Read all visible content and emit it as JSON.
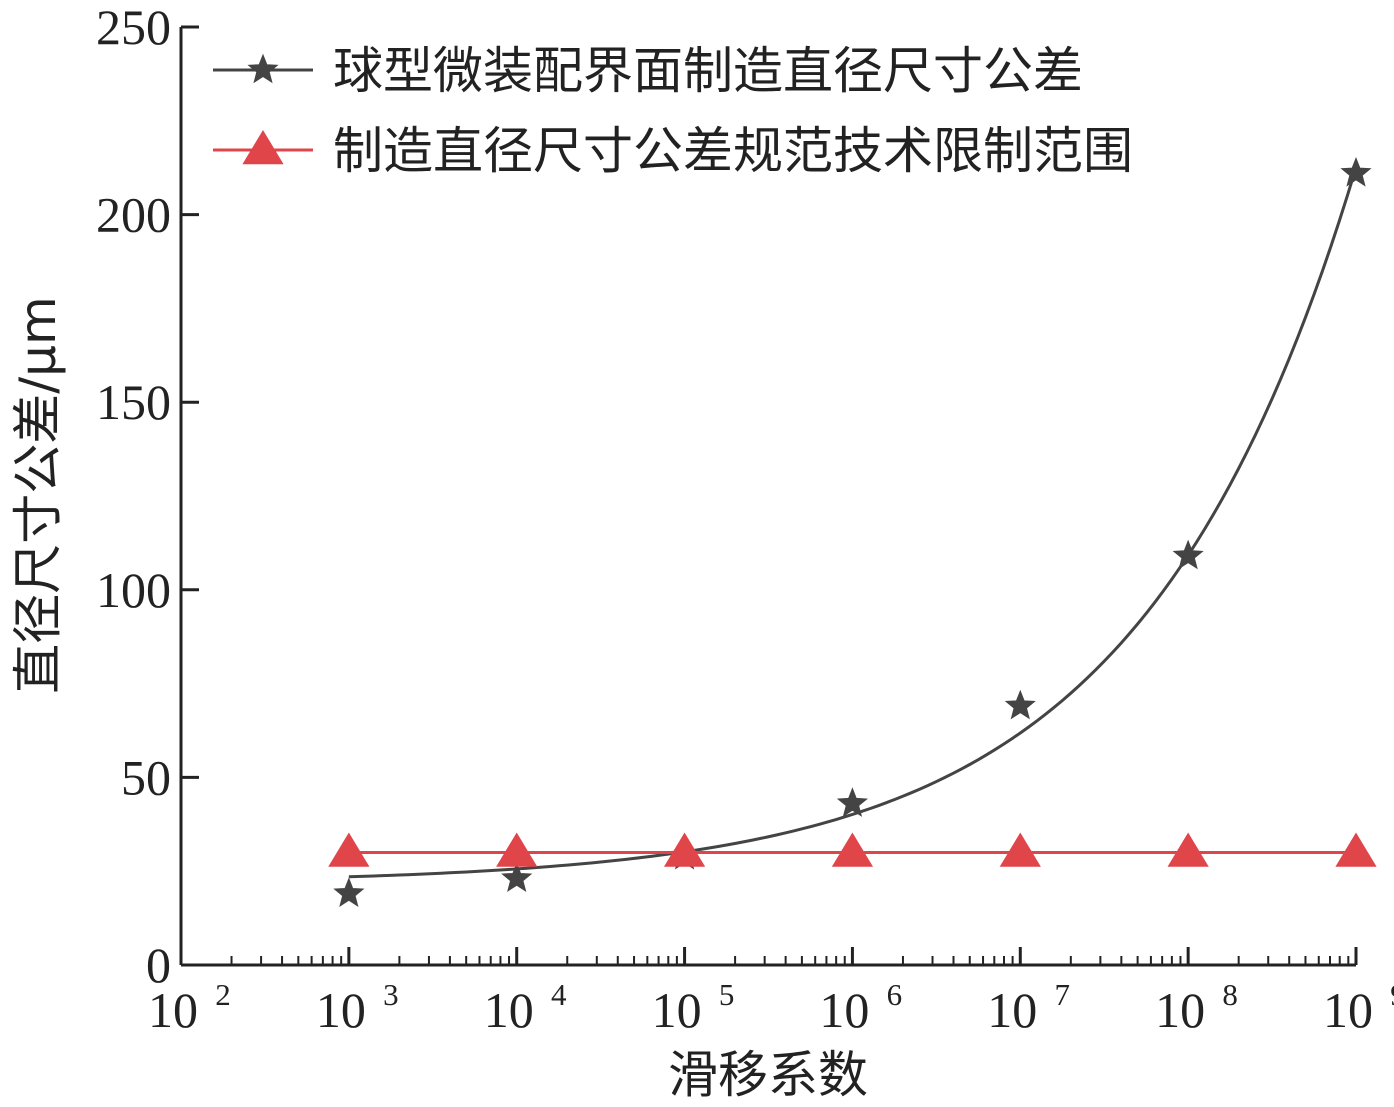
{
  "chart_data": {
    "type": "line",
    "xscale": "log",
    "xlim": [
      100,
      1000000000
    ],
    "ylim": [
      0,
      250
    ],
    "xlabel": "滑移系数",
    "ylabel": "直径尺寸公差/μm",
    "x_ticks": [
      {
        "base": "10",
        "exp": "2"
      },
      {
        "base": "10",
        "exp": "3"
      },
      {
        "base": "10",
        "exp": "4"
      },
      {
        "base": "10",
        "exp": "5"
      },
      {
        "base": "10",
        "exp": "6"
      },
      {
        "base": "10",
        "exp": "7"
      },
      {
        "base": "10",
        "exp": "8"
      },
      {
        "base": "10",
        "exp": "9"
      }
    ],
    "y_ticks": [
      "0",
      "50",
      "100",
      "150",
      "200",
      "250"
    ],
    "legend_position": "top",
    "series": [
      {
        "name": "球型微装配界面制造直径尺寸公差",
        "marker": "star",
        "color": "#444444",
        "x": [
          1000,
          10000,
          100000,
          1000000,
          10000000,
          100000000,
          1000000000
        ],
        "y": [
          19,
          23,
          29,
          43,
          69,
          109,
          211
        ],
        "smooth": true
      },
      {
        "name": "制造直径尺寸公差规范技术限制范围",
        "marker": "triangle",
        "color": "#e0454a",
        "x": [
          1000,
          10000,
          100000,
          1000000,
          10000000,
          100000000,
          1000000000
        ],
        "y": [
          30,
          30,
          30,
          30,
          30,
          30,
          30
        ],
        "smooth": false
      }
    ]
  }
}
